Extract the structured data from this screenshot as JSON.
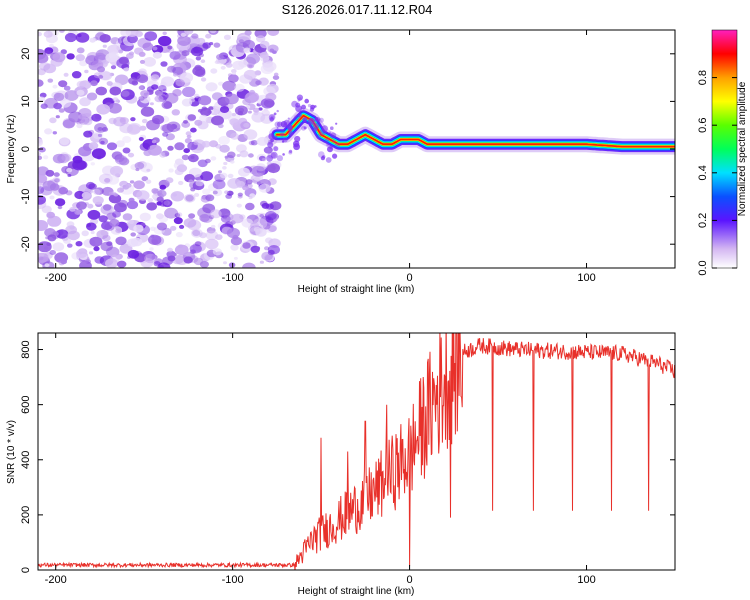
{
  "title": "S126.2026.017.11.12.R04",
  "chart_data": [
    {
      "type": "heatmap",
      "name": "spectrogram",
      "xlabel": "Height of straight line (km)",
      "ylabel": "Frequency (Hz)",
      "xlim": [
        -210,
        150
      ],
      "ylim": [
        -25,
        25
      ],
      "xticks": [
        -200,
        -100,
        0,
        100
      ],
      "xtick_labels": [
        "-200",
        "-100",
        "0",
        "100"
      ],
      "yticks": [
        -20,
        -10,
        0,
        10,
        20
      ],
      "ytick_labels": [
        "-20",
        "-10",
        "0",
        "10",
        "20"
      ],
      "noise_region": {
        "x_from": -210,
        "x_to": -75,
        "description_level": "low"
      },
      "ridge": {
        "x": [
          -75,
          -70,
          -65,
          -60,
          -55,
          -50,
          -45,
          -40,
          -35,
          -30,
          -25,
          -20,
          -15,
          -10,
          -5,
          0,
          5,
          10,
          20,
          40,
          60,
          80,
          100,
          120,
          150
        ],
        "y": [
          3,
          3,
          5,
          7,
          6,
          3,
          2,
          1,
          1,
          2,
          3,
          2,
          1,
          1,
          2,
          2,
          2,
          1,
          1,
          1,
          1,
          1,
          1,
          0.5,
          0.5
        ]
      },
      "colorbar": {
        "label": "Normalized spectral amplitude",
        "range": [
          0,
          1
        ],
        "ticks": [
          0.0,
          0.2,
          0.4,
          0.6,
          0.8
        ],
        "tick_labels": [
          "0.0",
          "0.2",
          "0.4",
          "0.6",
          "0.8"
        ]
      }
    },
    {
      "type": "line",
      "name": "snr",
      "xlabel": "Height of straight line (km)",
      "ylabel": "SNR (10 * v/v)",
      "xlim": [
        -210,
        150
      ],
      "ylim": [
        0,
        860
      ],
      "xticks": [
        -200,
        -100,
        0,
        100
      ],
      "xtick_labels": [
        "-200",
        "-100",
        "0",
        "100"
      ],
      "yticks": [
        0,
        200,
        400,
        600,
        800
      ],
      "ytick_labels": [
        "0",
        "200",
        "400",
        "600",
        "800"
      ],
      "color": "#e8302a",
      "trend": {
        "x": [
          -210,
          -65,
          -55,
          -40,
          -20,
          0,
          10,
          20,
          30,
          40,
          60,
          80,
          100,
          120,
          140,
          150
        ],
        "y": [
          18,
          18,
          110,
          180,
          280,
          420,
          560,
          690,
          790,
          815,
          800,
          795,
          790,
          785,
          750,
          720
        ]
      },
      "spikes": [
        {
          "x": -50,
          "y": 480
        },
        {
          "x": -35,
          "y": 430
        },
        {
          "x": -25,
          "y": 540
        },
        {
          "x": -13,
          "y": 600
        },
        {
          "x": 0,
          "y": 15
        },
        {
          "x": 23,
          "y": 190
        },
        {
          "x": 47,
          "y": 215
        },
        {
          "x": 70,
          "y": 215
        },
        {
          "x": 92,
          "y": 215
        },
        {
          "x": 114,
          "y": 215
        },
        {
          "x": 135,
          "y": 215
        }
      ]
    }
  ]
}
